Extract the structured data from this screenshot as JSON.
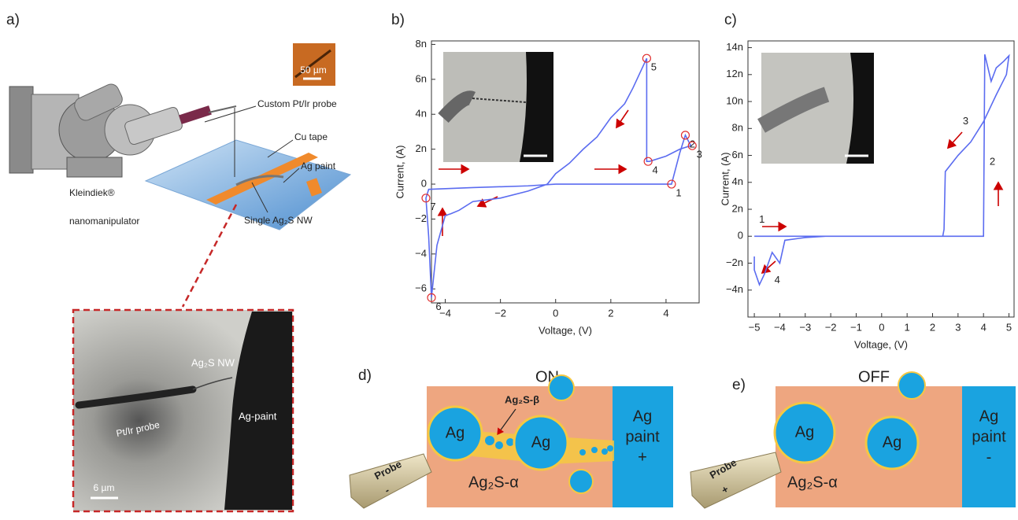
{
  "panel_a": {
    "label": "a)",
    "scale_top": "50 µm",
    "probe": "Custom Pt/Ir probe",
    "cu_tape": "Cu tape",
    "ag_paint": "Ag paint",
    "maker": "Kleindiek®",
    "device": "nanomanipulator",
    "nanowire": "Single Ag₂S NW",
    "micrograph": {
      "nanowire": "Ag₂S NW",
      "probe": "Pt/Ir probe",
      "paint": "Ag-paint",
      "scale": "6 µm"
    }
  },
  "chart_data": [
    {
      "type": "line",
      "panel_label": "b)",
      "xlabel": "Voltage, (V)",
      "ylabel": "Current, (A)",
      "color": "#5b6cf0",
      "x": [
        0,
        2,
        4.2,
        4.5,
        4.7,
        4.9,
        4.5,
        4.0,
        3.4,
        3.3,
        3.3,
        2.8,
        2.5,
        2.0,
        1.5,
        1.0,
        0.5,
        0,
        -0.3,
        -1,
        -2,
        -3,
        -3.5,
        -3.8,
        -4.0,
        -4.3,
        -4.5,
        -4.6,
        -4.7,
        -4.6,
        -3,
        -1,
        0
      ],
      "values": [
        0,
        0,
        0,
        1.8,
        2.8,
        2.2,
        2.0,
        1.6,
        1.3,
        1.3,
        7.2,
        5.5,
        4.6,
        3.8,
        2.7,
        2.0,
        1.2,
        0.6,
        0,
        -0.4,
        -0.8,
        -1.0,
        -1.5,
        -1.7,
        -1.8,
        -3.5,
        -6.5,
        -3,
        -0.8,
        -0.3,
        -0.2,
        -0.1,
        0
      ],
      "xlim": [
        -4.5,
        5.2
      ],
      "ylim": [
        -6.8,
        8.2
      ],
      "xticks": [
        {
          "value": -4,
          "label": "−4"
        },
        {
          "value": -2,
          "label": "−2"
        },
        0,
        2,
        4
      ],
      "yticks": [
        {
          "value": -6,
          "label": "−6"
        },
        {
          "value": -4,
          "label": "−4"
        },
        {
          "value": -2,
          "label": "−2"
        },
        0,
        {
          "value": 2,
          "label": "2n"
        },
        {
          "value": 4,
          "label": "4n"
        },
        {
          "value": 6,
          "label": "6n"
        },
        {
          "value": 8,
          "label": "8n"
        }
      ],
      "annotations": [
        {
          "text": "1",
          "x": 4.2,
          "y": 0,
          "circle": true
        },
        {
          "text": "2",
          "x": 4.7,
          "y": 2.8,
          "circle": true
        },
        {
          "text": "3",
          "x": 4.95,
          "y": 2.2,
          "circle": true
        },
        {
          "text": "4",
          "x": 3.35,
          "y": 1.3,
          "circle": true
        },
        {
          "text": "5",
          "x": 3.3,
          "y": 7.2,
          "circle": true
        },
        {
          "text": "6",
          "x": -4.5,
          "y": -6.5,
          "circle": true
        },
        {
          "text": "7",
          "x": -4.7,
          "y": -0.8,
          "circle": true
        }
      ]
    },
    {
      "type": "line",
      "panel_label": "c)",
      "xlabel": "Voltage, (V)",
      "ylabel": "Current, (A)",
      "color": "#5b6cf0",
      "x": [
        -5,
        -3,
        -1,
        1,
        3,
        4.0,
        4.05,
        4.3,
        4.5,
        4.8,
        5,
        4.9,
        4.5,
        4.0,
        3.5,
        3.0,
        2.5,
        2.45,
        2.4,
        0,
        -2.2,
        -3,
        -3.8,
        -4.0,
        -4.3,
        -4.6,
        -4.8,
        -5,
        -5
      ],
      "values": [
        0,
        0,
        0,
        0,
        0,
        0,
        13.5,
        11.5,
        12.5,
        13.0,
        13.4,
        12.0,
        10.5,
        8.5,
        7.0,
        6.0,
        4.8,
        0.5,
        0,
        0,
        0,
        -0.1,
        -0.3,
        -2.0,
        -1.2,
        -2.8,
        -3.6,
        -2.5,
        -1.5
      ],
      "xlim": [
        -5.25,
        5.2
      ],
      "ylim": [
        -6,
        14.5
      ],
      "xticks": [
        {
          "value": -5,
          "label": "−5"
        },
        {
          "value": -4,
          "label": "−4"
        },
        {
          "value": -3,
          "label": "−3"
        },
        {
          "value": -2,
          "label": "−2"
        },
        {
          "value": -1,
          "label": "−1"
        },
        0,
        1,
        2,
        3,
        4,
        5
      ],
      "yticks": [
        {
          "value": -4,
          "label": "−4n"
        },
        {
          "value": -2,
          "label": "−2n"
        },
        0,
        {
          "value": 2,
          "label": "2n"
        },
        {
          "value": 4,
          "label": "4n"
        },
        {
          "value": 6,
          "label": "6n"
        },
        {
          "value": 8,
          "label": "8n"
        },
        {
          "value": 10,
          "label": "10n"
        },
        {
          "value": 12,
          "label": "12n"
        },
        {
          "value": 14,
          "label": "14n"
        }
      ],
      "annotations": [
        {
          "text": "1",
          "x": -4.7,
          "y": 1.2,
          "circle": false
        },
        {
          "text": "2",
          "x": 4.35,
          "y": 5.5,
          "circle": false
        },
        {
          "text": "3",
          "x": 3.3,
          "y": 8.5,
          "circle": false
        },
        {
          "text": "4",
          "x": -4.1,
          "y": -3.3,
          "circle": false
        }
      ]
    }
  ],
  "panel_d": {
    "label": "d)",
    "state": "ON",
    "particles": [
      "Ag",
      "Ag"
    ],
    "phase_beta": "Ag₂S-β",
    "electrode": [
      "Ag",
      "paint",
      "+"
    ],
    "probe": [
      "Probe",
      "-"
    ],
    "phase_alpha": "Ag₂S-α"
  },
  "panel_e": {
    "label": "e)",
    "state": "OFF",
    "particles": [
      "Ag",
      "Ag"
    ],
    "electrode": [
      "Ag",
      "paint",
      "-"
    ],
    "probe": [
      "Probe",
      "+"
    ],
    "phase_alpha": "Ag₂S-α"
  }
}
